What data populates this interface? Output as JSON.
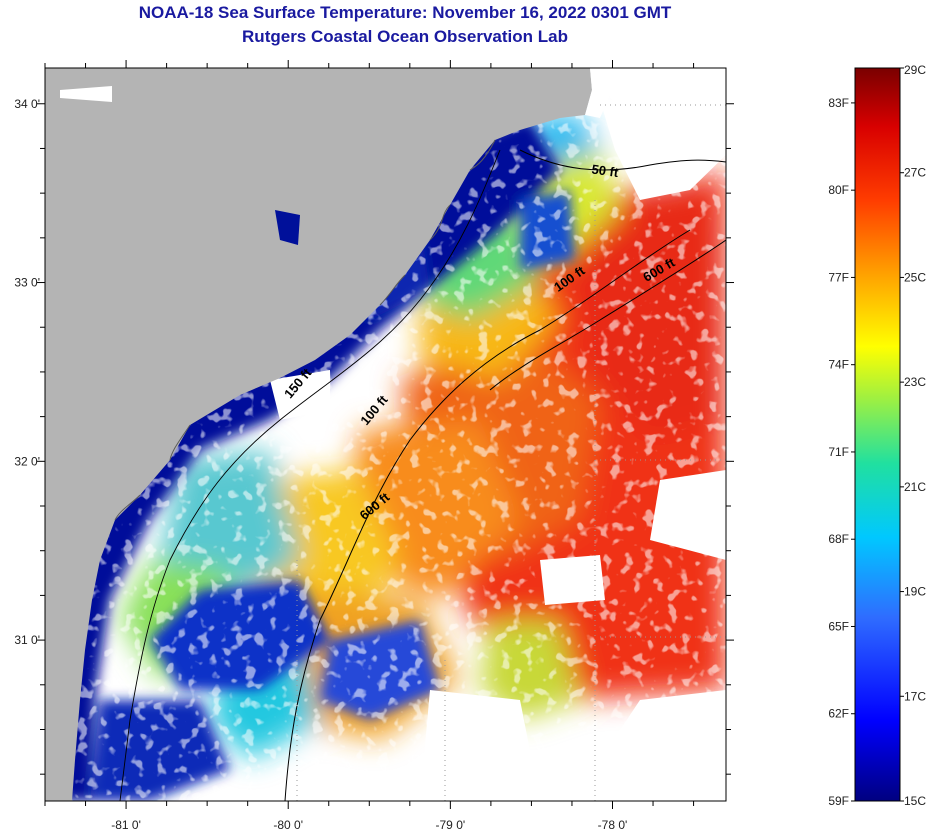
{
  "title": {
    "line1": "NOAA-18 Sea Surface Temperature:  November 16, 2022 0301 GMT",
    "line2": "Rutgers Coastal Ocean Observation Lab"
  },
  "map": {
    "lon_labels": [
      {
        "value": -81,
        "text": "-81 0'"
      },
      {
        "value": -80,
        "text": "-80 0'"
      },
      {
        "value": -79,
        "text": "-79 0'"
      },
      {
        "value": -78,
        "text": "-78 0'"
      }
    ],
    "lat_labels": [
      {
        "value": 34,
        "text": "34 0'"
      },
      {
        "value": 33,
        "text": "33 0'"
      },
      {
        "value": 32,
        "text": "32 0'"
      },
      {
        "value": 31,
        "text": "31 0'"
      }
    ],
    "lon_range": [
      -81.5,
      -77.3
    ],
    "lat_range": [
      30.1,
      34.2
    ],
    "contour_labels": [
      {
        "text": "50 ft",
        "lon": -78.05,
        "lat": 33.6,
        "rotate": 8
      },
      {
        "text": "100 ft",
        "lon": -78.25,
        "lat": 33.0,
        "rotate": -35
      },
      {
        "text": "600 ft",
        "lon": -77.7,
        "lat": 33.05,
        "rotate": -30
      },
      {
        "text": "150 ft",
        "lon": -79.92,
        "lat": 32.42,
        "rotate": -50
      },
      {
        "text": "100 ft",
        "lon": -79.45,
        "lat": 32.27,
        "rotate": -50
      },
      {
        "text": "600 ft",
        "lon": -79.45,
        "lat": 31.73,
        "rotate": -40
      }
    ],
    "colors": {
      "land": "#b4b4b4",
      "cold": "#00008c",
      "cloud": "#ffffff"
    }
  },
  "colorbar": {
    "celsius_labels": [
      {
        "value": 29,
        "text": "29C"
      },
      {
        "value": 27,
        "text": "27C"
      },
      {
        "value": 25,
        "text": "25C"
      },
      {
        "value": 23,
        "text": "23C"
      },
      {
        "value": 21,
        "text": "21C"
      },
      {
        "value": 19,
        "text": "19C"
      },
      {
        "value": 17,
        "text": "17C"
      },
      {
        "value": 15,
        "text": "15C"
      }
    ],
    "fahrenheit_labels": [
      {
        "value": 83,
        "text": "83F"
      },
      {
        "value": 80,
        "text": "80F"
      },
      {
        "value": 77,
        "text": "77F"
      },
      {
        "value": 74,
        "text": "74F"
      },
      {
        "value": 71,
        "text": "71F"
      },
      {
        "value": 68,
        "text": "68F"
      },
      {
        "value": 65,
        "text": "65F"
      },
      {
        "value": 62,
        "text": "62F"
      },
      {
        "value": 59,
        "text": "59F"
      }
    ],
    "range_c": [
      15,
      29
    ]
  }
}
